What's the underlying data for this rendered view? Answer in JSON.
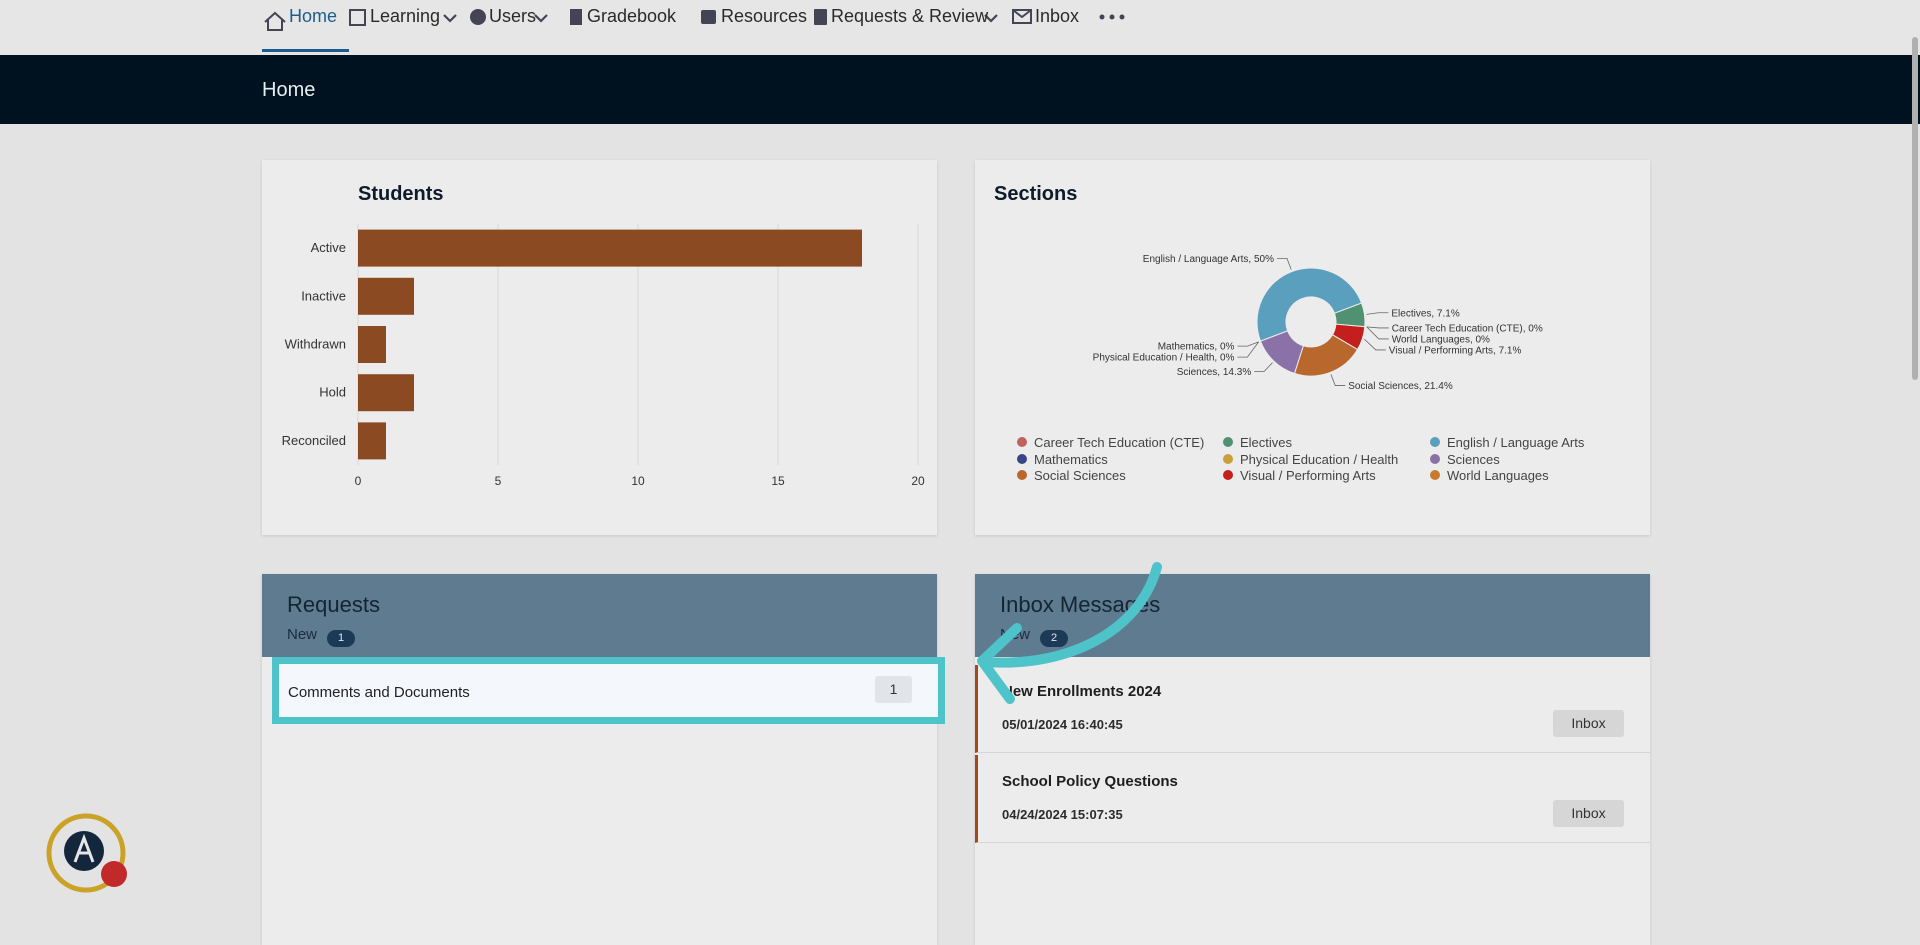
{
  "nav": {
    "items": [
      "Home",
      "Learning",
      "Users",
      "Gradebook",
      "Resources",
      "Requests & Review",
      "Inbox"
    ]
  },
  "banner": {
    "title": "Home"
  },
  "chart_data": [
    {
      "type": "bar",
      "orientation": "horizontal",
      "title": "Students",
      "categories": [
        "Active",
        "Inactive",
        "Withdrawn",
        "Hold",
        "Reconciled"
      ],
      "values": [
        18,
        2,
        1,
        2,
        1
      ],
      "color": "#8b4a22",
      "xlim": [
        0,
        20
      ],
      "xticks": [
        0,
        5,
        10,
        15,
        20
      ],
      "grid": true
    },
    {
      "type": "pie",
      "donut": true,
      "title": "Sections",
      "categories": [
        "Career Tech Education (CTE)",
        "Electives",
        "English / Language Arts",
        "Mathematics",
        "Physical Education / Health",
        "Sciences",
        "Social Sciences",
        "Visual / Performing Arts",
        "World Languages"
      ],
      "values": [
        0,
        7.1,
        50,
        0,
        0,
        14.3,
        21.4,
        7.1,
        0
      ],
      "value_labels": [
        "Career Tech Education (CTE), 0%",
        "Electives, 7.1%",
        "English / Language Arts, 50%",
        "Mathematics, 0%",
        "Physical Education / Health, 0%",
        "Sciences, 14.3%",
        "Social Sciences, 21.4%",
        "Visual / Performing Arts, 7.1%",
        "World Languages, 0%"
      ],
      "colors": [
        "#c0605f",
        "#4f9170",
        "#5a9fbd",
        "#3d438a",
        "#c9a13a",
        "#8a72a8",
        "#b8682c",
        "#c41e1e",
        "#c97a2e"
      ],
      "legend": "bottom"
    }
  ],
  "requests": {
    "title": "Requests",
    "new_label": "New",
    "new_count": 1,
    "items": [
      {
        "label": "Comments and Documents",
        "count": 1
      }
    ]
  },
  "inbox": {
    "title": "Inbox Messages",
    "new_label": "New",
    "new_count": 2,
    "messages": [
      {
        "subject": "New Enrollments 2024",
        "date": "05/01/2024 16:40:45",
        "action": "Inbox"
      },
      {
        "subject": "School Policy Questions",
        "date": "04/24/2024 15:07:35",
        "action": "Inbox"
      }
    ]
  }
}
